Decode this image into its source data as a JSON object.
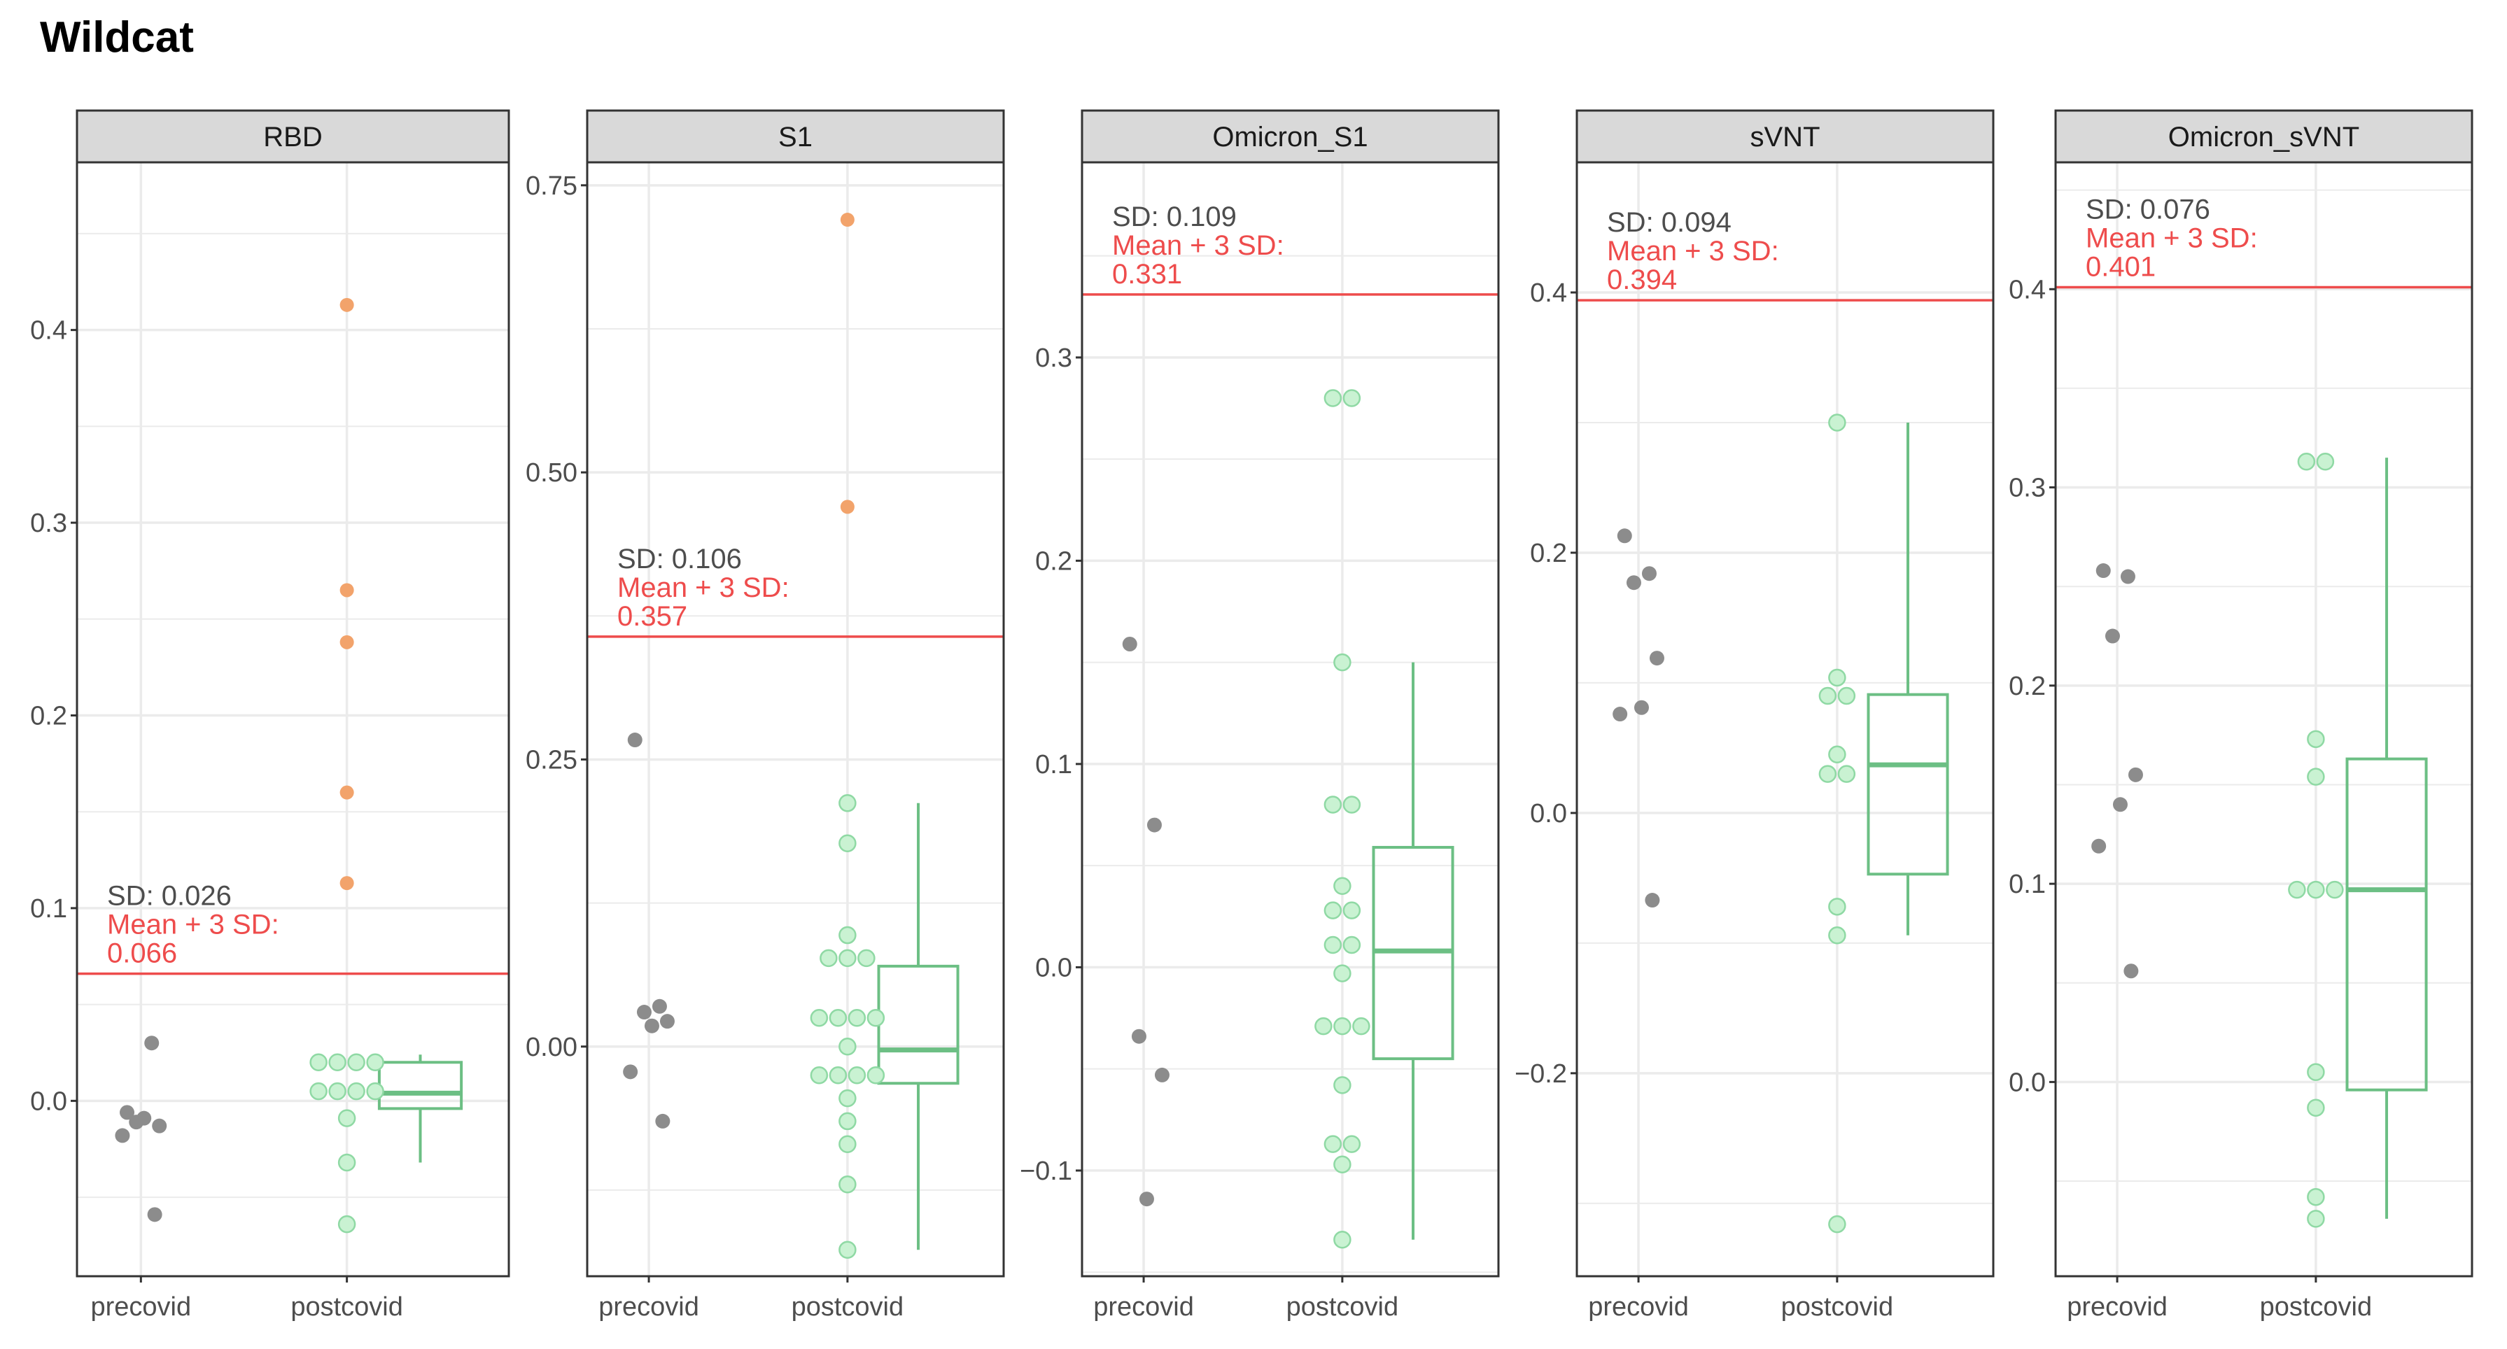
{
  "title": "Wildcat",
  "colors": {
    "precovid_point": "#8c8c8c",
    "postcovid_fill": "#c9f2d2",
    "postcovid_stroke": "#8fd9a4",
    "above_threshold": "#f2a36b",
    "box": "#6cbf84",
    "threshold": "#ee4c4c",
    "strip_bg": "#d9d9d9",
    "grid": "#ebebeb"
  },
  "chart_data": [
    {
      "type": "box+strip",
      "panel": "RBD",
      "categories": [
        "precovid",
        "postcovid"
      ],
      "ylim": [
        -0.091,
        0.487
      ],
      "yticks": [
        0.0,
        0.1,
        0.2,
        0.3,
        0.4
      ],
      "ytick_labels": [
        "0.0",
        "0.1",
        "0.2",
        "0.3",
        "0.4"
      ],
      "threshold": 0.066,
      "annotation": {
        "sd": "SD: 0.026",
        "label": "Mean + 3 SD:",
        "value": "0.066"
      },
      "precovid": [
        -0.006,
        0.03,
        -0.011,
        -0.013,
        -0.009,
        -0.018,
        -0.059
      ],
      "postcovid": [
        0.413,
        0.265,
        0.238,
        0.16,
        0.113,
        0.02,
        0.02,
        0.02,
        0.02,
        0.005,
        0.005,
        0.005,
        0.005,
        -0.009,
        -0.032,
        -0.064
      ],
      "postcovid_box": {
        "lower_whisker": -0.032,
        "q1": -0.004,
        "median": 0.004,
        "q3": 0.02,
        "upper_whisker": 0.024
      }
    },
    {
      "type": "box+strip",
      "panel": "S1",
      "categories": [
        "precovid",
        "postcovid"
      ],
      "ylim": [
        -0.2,
        0.77
      ],
      "yticks": [
        0.0,
        0.25,
        0.5,
        0.75
      ],
      "ytick_labels": [
        "0.00",
        "0.25",
        "0.50",
        "0.75"
      ],
      "threshold": 0.357,
      "annotation": {
        "sd": "SD: 0.106",
        "label": "Mean + 3 SD:",
        "value": "0.357"
      },
      "precovid": [
        0.267,
        0.035,
        0.03,
        0.022,
        0.018,
        -0.022,
        -0.065
      ],
      "postcovid": [
        0.72,
        0.47,
        0.212,
        0.177,
        0.097,
        0.077,
        0.077,
        0.077,
        0.025,
        0.025,
        0.025,
        0.025,
        0.0,
        -0.025,
        -0.025,
        -0.025,
        -0.025,
        -0.045,
        -0.065,
        -0.085,
        -0.12,
        -0.177
      ],
      "postcovid_box": {
        "lower_whisker": -0.177,
        "q1": -0.032,
        "median": -0.003,
        "q3": 0.07,
        "upper_whisker": 0.212
      }
    },
    {
      "type": "box+strip",
      "panel": "Omicron_S1",
      "categories": [
        "precovid",
        "postcovid"
      ],
      "ylim": [
        -0.152,
        0.396
      ],
      "yticks": [
        -0.1,
        0.0,
        0.1,
        0.2,
        0.3
      ],
      "ytick_labels": [
        "−0.1",
        "0.0",
        "0.1",
        "0.2",
        "0.3"
      ],
      "threshold": 0.331,
      "annotation": {
        "sd": "SD: 0.109",
        "label": "Mean + 3 SD:",
        "value": "0.331"
      },
      "precovid": [
        0.159,
        0.07,
        -0.034,
        -0.053,
        -0.114
      ],
      "postcovid": [
        0.28,
        0.28,
        0.15,
        0.08,
        0.08,
        0.04,
        0.028,
        0.028,
        0.011,
        0.011,
        -0.003,
        -0.029,
        -0.029,
        -0.029,
        -0.058,
        -0.087,
        -0.087,
        -0.097,
        -0.134
      ],
      "postcovid_box": {
        "lower_whisker": -0.134,
        "q1": -0.045,
        "median": 0.008,
        "q3": 0.059,
        "upper_whisker": 0.15
      }
    },
    {
      "type": "box+strip",
      "panel": "sVNT",
      "categories": [
        "precovid",
        "postcovid"
      ],
      "ylim": [
        -0.356,
        0.5
      ],
      "yticks": [
        -0.2,
        0.0,
        0.2,
        0.4
      ],
      "ytick_labels": [
        "−0.2",
        "0.0",
        "0.2",
        "0.4"
      ],
      "threshold": 0.394,
      "annotation": {
        "sd": "SD: 0.094",
        "label": "Mean + 3 SD:",
        "value": "0.394"
      },
      "precovid": [
        0.213,
        0.184,
        0.177,
        0.119,
        0.081,
        0.076,
        -0.067
      ],
      "postcovid": [
        0.3,
        0.104,
        0.09,
        0.09,
        0.045,
        0.03,
        0.03,
        -0.072,
        -0.094,
        -0.316
      ],
      "postcovid_box": {
        "lower_whisker": -0.094,
        "q1": -0.047,
        "median": 0.037,
        "q3": 0.091,
        "upper_whisker": 0.3
      }
    },
    {
      "type": "box+strip",
      "panel": "Omicron_sVNT",
      "categories": [
        "precovid",
        "postcovid"
      ],
      "ylim": [
        -0.098,
        0.464
      ],
      "yticks": [
        0.0,
        0.1,
        0.2,
        0.3,
        0.4
      ],
      "ytick_labels": [
        "0.0",
        "0.1",
        "0.2",
        "0.3",
        "0.4"
      ],
      "threshold": 0.401,
      "annotation": {
        "sd": "SD: 0.076",
        "label": "Mean + 3 SD:",
        "value": "0.401"
      },
      "precovid": [
        0.258,
        0.255,
        0.225,
        0.155,
        0.14,
        0.119,
        0.056
      ],
      "postcovid": [
        0.313,
        0.313,
        0.173,
        0.154,
        0.097,
        0.097,
        0.097,
        0.005,
        -0.013,
        -0.058,
        -0.069
      ],
      "postcovid_box": {
        "lower_whisker": -0.069,
        "q1": -0.004,
        "median": 0.097,
        "q3": 0.163,
        "upper_whisker": 0.315
      }
    }
  ]
}
